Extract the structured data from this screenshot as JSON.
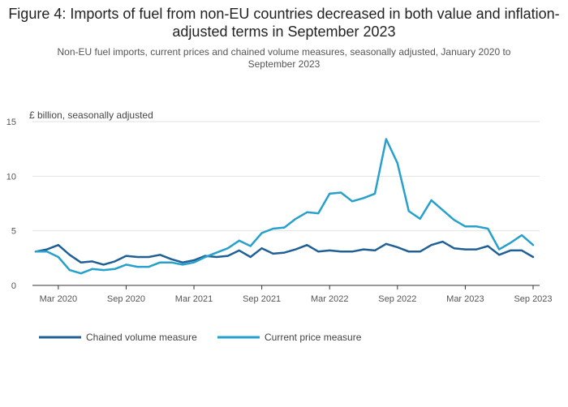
{
  "title": "Figure 4: Imports of fuel from non-EU countries decreased in both value and inflation-adjusted terms in September 2023",
  "subtitle": "Non-EU fuel imports, current prices and chained volume measures, seasonally adjusted, January 2020 to September 2023",
  "chart_data": {
    "type": "line",
    "ylabel": "£ billion, seasonally adjusted",
    "ylim": [
      0,
      15
    ],
    "yticks": [
      0,
      5,
      10,
      15
    ],
    "xtick_labels": [
      "Mar 2020",
      "Sep 2020",
      "Mar 2021",
      "Sep 2021",
      "Mar 2022",
      "Sep 2022",
      "Mar 2023",
      "Sep 2023"
    ],
    "xtick_index": [
      2,
      8,
      14,
      20,
      26,
      32,
      38,
      44
    ],
    "x": [
      "Jan 2020",
      "Feb 2020",
      "Mar 2020",
      "Apr 2020",
      "May 2020",
      "Jun 2020",
      "Jul 2020",
      "Aug 2020",
      "Sep 2020",
      "Oct 2020",
      "Nov 2020",
      "Dec 2020",
      "Jan 2021",
      "Feb 2021",
      "Mar 2021",
      "Apr 2021",
      "May 2021",
      "Jun 2021",
      "Jul 2021",
      "Aug 2021",
      "Sep 2021",
      "Oct 2021",
      "Nov 2021",
      "Dec 2021",
      "Jan 2022",
      "Feb 2022",
      "Mar 2022",
      "Apr 2022",
      "May 2022",
      "Jun 2022",
      "Jul 2022",
      "Aug 2022",
      "Sep 2022",
      "Oct 2022",
      "Nov 2022",
      "Dec 2022",
      "Jan 2023",
      "Feb 2023",
      "Mar 2023",
      "Apr 2023",
      "May 2023",
      "Jun 2023",
      "Jul 2023",
      "Aug 2023",
      "Sep 2023"
    ],
    "grid": true,
    "legend_position": "bottom-left",
    "series": [
      {
        "name": "Chained volume measure",
        "color": "#206095",
        "values": [
          3.1,
          3.3,
          3.7,
          2.8,
          2.1,
          2.2,
          1.9,
          2.2,
          2.7,
          2.6,
          2.6,
          2.8,
          2.4,
          2.1,
          2.3,
          2.7,
          2.6,
          2.7,
          3.2,
          2.6,
          3.4,
          2.9,
          3.0,
          3.3,
          3.7,
          3.1,
          3.2,
          3.1,
          3.1,
          3.3,
          3.2,
          3.8,
          3.5,
          3.1,
          3.1,
          3.7,
          4.0,
          3.4,
          3.3,
          3.3,
          3.6,
          2.8,
          3.2,
          3.2,
          2.6
        ]
      },
      {
        "name": "Current price measure",
        "color": "#27A0CC",
        "values": [
          3.1,
          3.1,
          2.6,
          1.4,
          1.1,
          1.5,
          1.4,
          1.5,
          1.9,
          1.7,
          1.7,
          2.1,
          2.1,
          1.9,
          2.1,
          2.6,
          3.0,
          3.4,
          4.1,
          3.6,
          4.8,
          5.2,
          5.3,
          6.1,
          6.7,
          6.6,
          8.4,
          8.5,
          7.7,
          8.0,
          8.4,
          13.4,
          11.2,
          6.8,
          6.1,
          7.8,
          6.9,
          6.0,
          5.4,
          5.4,
          5.2,
          3.3,
          3.9,
          4.6,
          3.7
        ]
      }
    ]
  }
}
